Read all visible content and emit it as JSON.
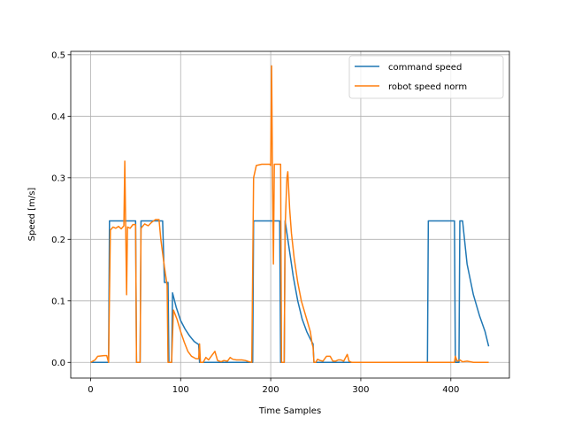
{
  "chart_data": {
    "type": "line",
    "title": "",
    "xlabel": "Time Samples",
    "ylabel": "Speed [m/s]",
    "xlim": [
      -22,
      465
    ],
    "ylim": [
      -0.0255,
      0.5055
    ],
    "xticks": [
      0,
      100,
      200,
      300,
      400
    ],
    "yticks": [
      0.0,
      0.1,
      0.2,
      0.3,
      0.4,
      0.5
    ],
    "xtick_labels": [
      "0",
      "100",
      "200",
      "300",
      "400"
    ],
    "ytick_labels": [
      "0.0",
      "0.1",
      "0.2",
      "0.3",
      "0.4",
      "0.5"
    ],
    "grid": true,
    "legend_position": "top-right",
    "series": [
      {
        "name": "command speed",
        "color": "#1f77b4",
        "points": [
          [
            0,
            0
          ],
          [
            20,
            0
          ],
          [
            21,
            0.23
          ],
          [
            50,
            0.23
          ],
          [
            51,
            0
          ],
          [
            55,
            0
          ],
          [
            56,
            0.23
          ],
          [
            80,
            0.23
          ],
          [
            82,
            0.13
          ],
          [
            86,
            0.13
          ],
          [
            87,
            0
          ],
          [
            90,
            0
          ],
          [
            91,
            0.113
          ],
          [
            95,
            0.09
          ],
          [
            100,
            0.068
          ],
          [
            105,
            0.054
          ],
          [
            110,
            0.043
          ],
          [
            115,
            0.034
          ],
          [
            120,
            0.029
          ],
          [
            121,
            0
          ],
          [
            180,
            0
          ],
          [
            181,
            0.23
          ],
          [
            210,
            0.23
          ],
          [
            211,
            0
          ],
          [
            215,
            0
          ],
          [
            216,
            0.23
          ],
          [
            220,
            0.19
          ],
          [
            225,
            0.14
          ],
          [
            230,
            0.1
          ],
          [
            235,
            0.07
          ],
          [
            240,
            0.05
          ],
          [
            245,
            0.035
          ],
          [
            247,
            0.03
          ],
          [
            248,
            0
          ],
          [
            374,
            0
          ],
          [
            375,
            0.23
          ],
          [
            404,
            0.23
          ],
          [
            405,
            0
          ],
          [
            409,
            0
          ],
          [
            410,
            0.23
          ],
          [
            413,
            0.23
          ],
          [
            418,
            0.16
          ],
          [
            425,
            0.11
          ],
          [
            432,
            0.075
          ],
          [
            438,
            0.05
          ],
          [
            442,
            0.026
          ]
        ]
      },
      {
        "name": "robot speed norm",
        "color": "#ff7f0e",
        "points": [
          [
            0,
            0
          ],
          [
            5,
            0.004
          ],
          [
            8,
            0.01
          ],
          [
            15,
            0.011
          ],
          [
            18,
            0.011
          ],
          [
            20,
            0
          ],
          [
            22,
            0.215
          ],
          [
            25,
            0.22
          ],
          [
            28,
            0.218
          ],
          [
            31,
            0.221
          ],
          [
            34,
            0.217
          ],
          [
            37,
            0.222
          ],
          [
            38,
            0.327
          ],
          [
            40,
            0.11
          ],
          [
            41,
            0.22
          ],
          [
            44,
            0.218
          ],
          [
            47,
            0.224
          ],
          [
            50,
            0.224
          ],
          [
            51,
            0
          ],
          [
            55,
            0
          ],
          [
            56,
            0.218
          ],
          [
            60,
            0.225
          ],
          [
            64,
            0.222
          ],
          [
            68,
            0.228
          ],
          [
            72,
            0.232
          ],
          [
            76,
            0.232
          ],
          [
            78,
            0.2
          ],
          [
            82,
            0.155
          ],
          [
            85,
            0.125
          ],
          [
            86,
            0
          ],
          [
            90,
            0
          ],
          [
            92,
            0.085
          ],
          [
            96,
            0.07
          ],
          [
            100,
            0.05
          ],
          [
            104,
            0.033
          ],
          [
            108,
            0.018
          ],
          [
            112,
            0.01
          ],
          [
            117,
            0.006
          ],
          [
            120,
            0.006
          ],
          [
            121,
            0.03
          ],
          [
            122,
            0
          ],
          [
            125,
            0
          ],
          [
            128,
            0.008
          ],
          [
            131,
            0.004
          ],
          [
            134,
            0.01
          ],
          [
            138,
            0.018
          ],
          [
            141,
            0.003
          ],
          [
            145,
            0.001
          ],
          [
            148,
            0.003
          ],
          [
            152,
            0.002
          ],
          [
            155,
            0.008
          ],
          [
            158,
            0.005
          ],
          [
            162,
            0.004
          ],
          [
            168,
            0.004
          ],
          [
            172,
            0.003
          ],
          [
            176,
            0.001
          ],
          [
            179,
            0
          ],
          [
            181,
            0.3
          ],
          [
            184,
            0.32
          ],
          [
            190,
            0.322
          ],
          [
            196,
            0.322
          ],
          [
            199,
            0.322
          ],
          [
            200,
            0.32
          ],
          [
            201,
            0.482
          ],
          [
            202,
            0.3
          ],
          [
            203,
            0.16
          ],
          [
            204,
            0.322
          ],
          [
            208,
            0.322
          ],
          [
            211,
            0.322
          ],
          [
            212,
            0
          ],
          [
            215,
            0
          ],
          [
            216,
            0.22
          ],
          [
            218,
            0.3
          ],
          [
            219,
            0.31
          ],
          [
            220,
            0.28
          ],
          [
            221,
            0.25
          ],
          [
            223,
            0.21
          ],
          [
            226,
            0.17
          ],
          [
            230,
            0.13
          ],
          [
            234,
            0.1
          ],
          [
            238,
            0.08
          ],
          [
            241,
            0.065
          ],
          [
            244,
            0.05
          ],
          [
            246,
            0.03
          ],
          [
            247,
            0.025
          ],
          [
            248,
            0
          ],
          [
            250,
            0
          ],
          [
            252,
            0.005
          ],
          [
            255,
            0.003
          ],
          [
            258,
            0.002
          ],
          [
            262,
            0.01
          ],
          [
            266,
            0.01
          ],
          [
            269,
            0.002
          ],
          [
            272,
            0.002
          ],
          [
            275,
            0.004
          ],
          [
            278,
            0.004
          ],
          [
            281,
            0.002
          ],
          [
            285,
            0.013
          ],
          [
            287,
            0.002
          ],
          [
            290,
            0
          ],
          [
            330,
            0
          ],
          [
            374,
            0
          ],
          [
            380,
            0
          ],
          [
            404,
            0
          ],
          [
            405,
            0.01
          ],
          [
            407,
            0.002
          ],
          [
            410,
            0.004
          ],
          [
            413,
            0.001
          ],
          [
            418,
            0.002
          ],
          [
            425,
            0
          ],
          [
            442,
            0
          ]
        ]
      }
    ]
  }
}
